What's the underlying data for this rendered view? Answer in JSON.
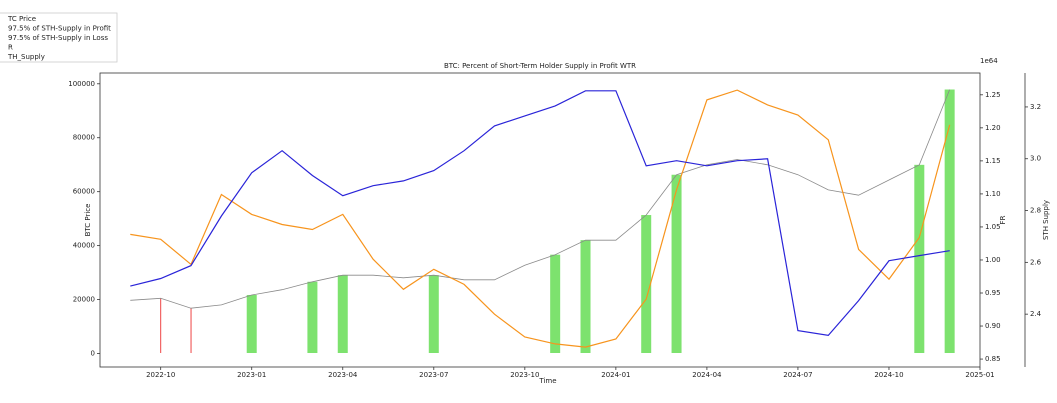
{
  "chart_data": {
    "type": "line",
    "title": "BTC: Percent of Short-Term Holder Supply in Profit WTR",
    "xlabel": "Time",
    "ylabel": "BTC Price",
    "y2label": "FR",
    "y2_offset_text": "1e64",
    "y3label": "STH Supply",
    "x": [
      "2022-09",
      "2022-10",
      "2022-11",
      "2022-12",
      "2023-01",
      "2023-02",
      "2023-03",
      "2023-04",
      "2023-05",
      "2023-06",
      "2023-07",
      "2023-08",
      "2023-09",
      "2023-10",
      "2023-11",
      "2023-12",
      "2024-01",
      "2024-02",
      "2024-03",
      "2024-04",
      "2024-05",
      "2024-06",
      "2024-07",
      "2024-08",
      "2024-09",
      "2024-10",
      "2024-11",
      "2024-12"
    ],
    "xlim": [
      "2022-08",
      "2025-01"
    ],
    "xticks": [
      "2022-10",
      "2023-01",
      "2023-04",
      "2023-07",
      "2023-10",
      "2024-01",
      "2024-04",
      "2024-07",
      "2024-10",
      "2025-01"
    ],
    "ylim": [
      -5000,
      104000
    ],
    "yticks": [
      0,
      20000,
      40000,
      60000,
      80000,
      100000
    ],
    "y2lim": [
      0.838,
      1.283
    ],
    "y2ticks": [
      0.85,
      {
        "value": 0.9,
        "label": "0.90"
      },
      0.95,
      {
        "value": 1.0,
        "label": "1.00"
      },
      1.05,
      {
        "value": 1.1,
        "label": "1.10"
      },
      1.15,
      {
        "value": 1.2,
        "label": "1.20"
      },
      1.25
    ],
    "y3lim": [
      2.196,
      3.331
    ],
    "y3ticks": [
      2.4,
      2.6,
      2.8,
      {
        "value": 3.0,
        "label": "3.0"
      },
      3.2
    ],
    "grid": false,
    "legend": "upper left",
    "series": [
      {
        "name": "TC Price",
        "color": "#2a24d8",
        "style": "line",
        "axis": "y",
        "values": [
          25000,
          27800,
          32600,
          51000,
          67000,
          75200,
          66000,
          58500,
          62200,
          64000,
          67800,
          75200,
          84400,
          88100,
          91800,
          97400,
          97400,
          69600,
          71500,
          69600,
          71500,
          72200,
          8500,
          6700,
          19600,
          34400,
          36300,
          38100
        ]
      },
      {
        "name": "97.5% of STH-Supply in Profit",
        "color": "#66dd55",
        "style": "bar",
        "axis": "y2",
        "values": [
          null,
          null,
          null,
          null,
          0.947,
          null,
          0.967,
          0.977,
          null,
          null,
          0.977,
          null,
          null,
          null,
          1.008,
          1.03,
          null,
          1.068,
          1.129,
          null,
          null,
          null,
          null,
          null,
          null,
          null,
          1.144,
          1.258
        ]
      },
      {
        "name": "97.5% of STH-Supply in Loss",
        "color": "#ee4444",
        "style": "stem",
        "axis": "y2",
        "values": [
          null,
          0.942,
          0.927,
          null,
          null,
          null,
          null,
          null,
          null,
          null,
          null,
          null,
          null,
          null,
          null,
          null,
          null,
          null,
          null,
          null,
          null,
          null,
          null,
          null,
          null,
          null,
          null,
          null
        ]
      },
      {
        "name": "R",
        "color": "#8a8a8a",
        "style": "line",
        "axis": "y2",
        "values": [
          0.939,
          0.942,
          0.927,
          0.932,
          0.947,
          0.955,
          0.967,
          0.977,
          0.977,
          0.973,
          0.977,
          0.97,
          0.97,
          0.992,
          1.008,
          1.03,
          1.03,
          1.068,
          1.129,
          1.144,
          1.152,
          1.144,
          1.129,
          1.106,
          1.098,
          1.121,
          1.144,
          1.258
        ]
      },
      {
        "name": "TH_Supply",
        "color": "#f7941d",
        "style": "line",
        "axis": "y3",
        "values": [
          2.708,
          2.689,
          2.592,
          2.862,
          2.785,
          2.746,
          2.727,
          2.785,
          2.612,
          2.496,
          2.573,
          2.515,
          2.4,
          2.312,
          2.285,
          2.273,
          2.304,
          2.458,
          2.881,
          3.227,
          3.265,
          3.208,
          3.169,
          3.073,
          2.65,
          2.535,
          2.696,
          3.131
        ]
      }
    ]
  }
}
